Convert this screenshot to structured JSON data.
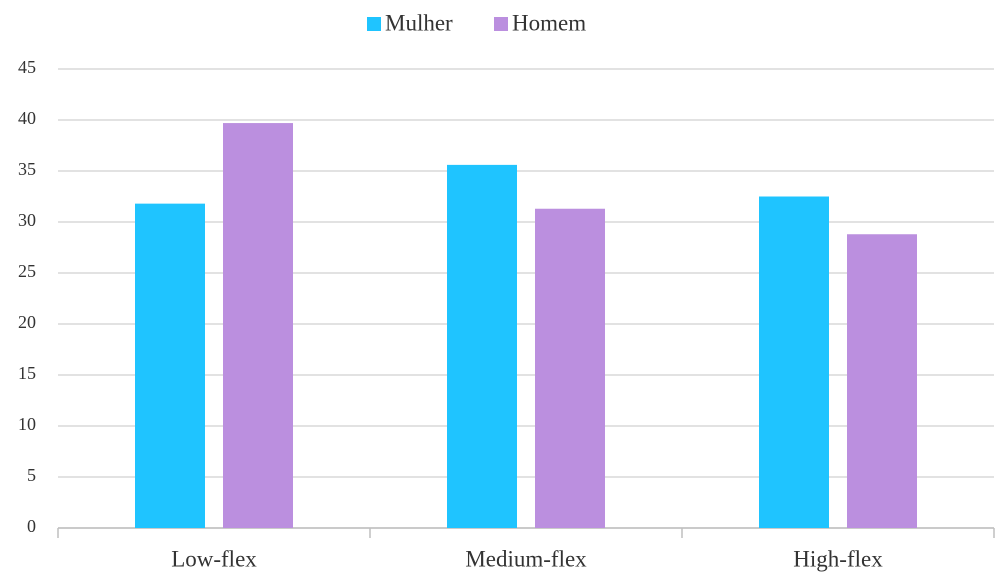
{
  "chart_data": {
    "type": "bar",
    "categories": [
      "Low-flex",
      "Medium-flex",
      "High-flex"
    ],
    "series": [
      {
        "name": "Mulher",
        "color": "#1FC4FF",
        "values": [
          31.8,
          35.6,
          32.5
        ]
      },
      {
        "name": "Homem",
        "color": "#BB8FDF",
        "values": [
          39.7,
          31.3,
          28.8
        ]
      }
    ],
    "ylim": [
      0,
      45
    ],
    "yticks": [
      0,
      5,
      10,
      15,
      20,
      25,
      30,
      35,
      40,
      45
    ],
    "grid": true,
    "legend": "top"
  }
}
